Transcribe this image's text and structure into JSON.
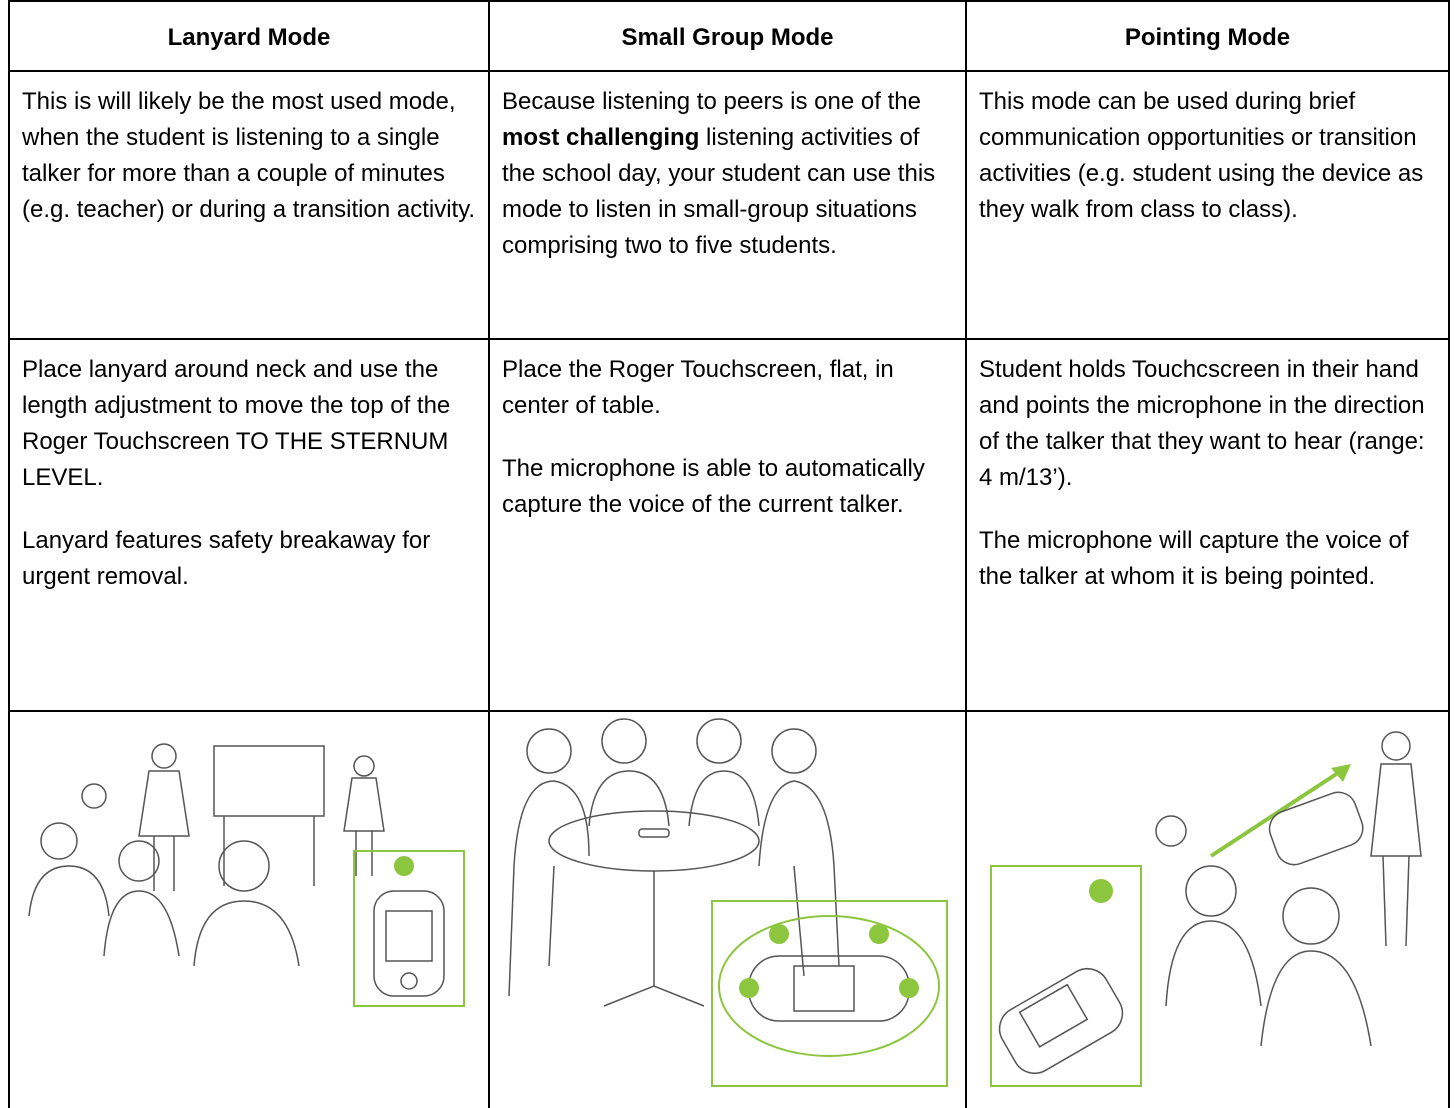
{
  "table": {
    "header": [
      "Lanyard Mode",
      "Small Group Mode",
      "Pointing Mode"
    ],
    "rows": [
      [
        [
          "This is will likely be the most used mode, when the student is listening to a single talker for more than a couple of minutes (e.g. teacher) or during a transition activity."
        ],
        [
          [
            "Because listening to peers is one of the ",
            "most challenging",
            " listening activities of the school day, your student can use this mode to listen in small-group situations comprising two to five students."
          ]
        ],
        [
          "This mode can be used during brief communication opportunities or transition activities (e.g.  student using the device as they walk from class to class)."
        ]
      ],
      [
        [
          "Place lanyard around neck and use the length adjustment to move the top of the Roger Touchscreen TO THE STERNUM LEVEL.",
          "Lanyard features safety breakaway for urgent removal."
        ],
        [
          "Place the Roger Touchscreen, flat, in center of table.",
          "The microphone is able to automatically capture the voice of the current talker."
        ],
        [
          "Student holds Touchcscreen in their hand and points the microphone in the direction of the talker that they want to hear (range: 4 m/13’).",
          "The microphone will capture the voice of the talker at whom it is being pointed."
        ]
      ]
    ]
  }
}
